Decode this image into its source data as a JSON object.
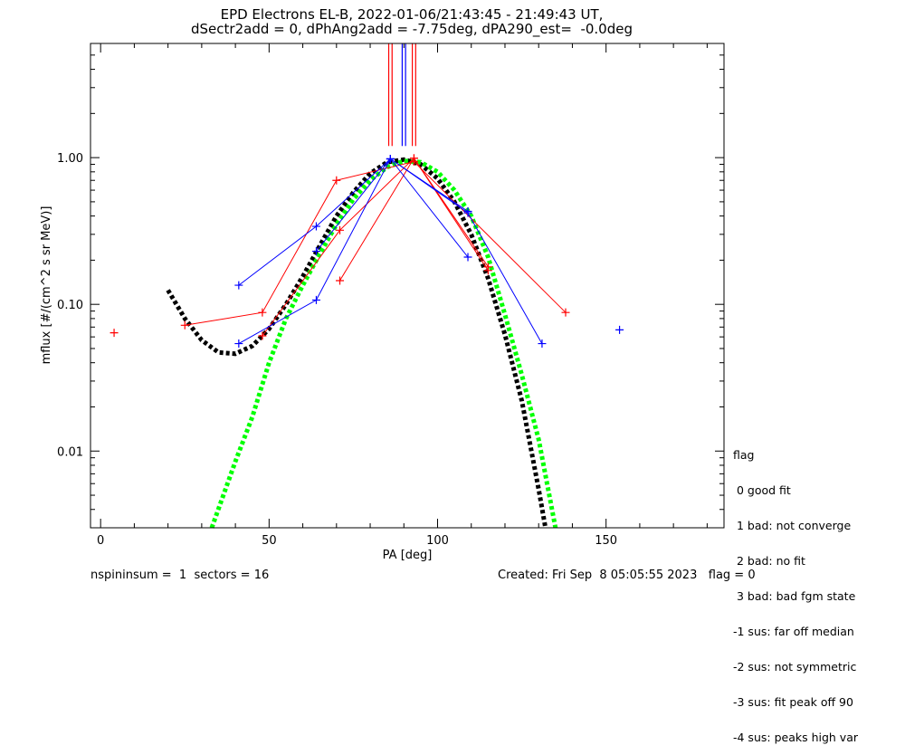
{
  "title_line1": "EPD Electrons EL-B, 2022-01-06/21:43:45 - 21:49:43 UT,",
  "title_line2": "dSectr2add = 0, dPhAng2add = -7.75deg, dPA290_est=  -0.0deg",
  "footer_left": "nspininsum =  1  sectors = 16",
  "footer_right": "Created: Fri Sep  8 05:05:55 2023   flag = 0",
  "legend": {
    "title": "flag",
    "items": [
      " 0 good fit",
      " 1 bad: not converge",
      " 2 bad: no fit",
      " 3 bad: bad fgm state",
      "-1 sus: far off median",
      "-2 sus: not symmetric",
      "-3 sus: fit peak off 90",
      "-4 sus: peaks high var"
    ]
  },
  "colors": {
    "red": "#ff0000",
    "blue": "#0000ff",
    "black": "#000000",
    "green": "#00ff00"
  },
  "chart_data": {
    "type": "line",
    "xlabel": "PA [deg]",
    "ylabel": "mflux [#/(cm^2 s sr MeV)]",
    "xlim": [
      -3,
      185
    ],
    "ylim": [
      0.003,
      6
    ],
    "yscale": "log",
    "xticks": [
      0,
      50,
      100,
      150
    ],
    "yticks": [
      0.01,
      0.1,
      1.0
    ],
    "ytick_labels": [
      "0.01",
      "0.10",
      "1.00"
    ],
    "series": [
      {
        "color": "red",
        "points": [
          [
            25,
            0.072
          ],
          [
            48,
            0.088
          ],
          [
            70,
            0.7
          ],
          [
            93,
            0.94
          ],
          [
            138,
            0.088
          ]
        ]
      },
      {
        "color": "red",
        "points": [
          [
            48,
            0.061
          ],
          [
            71,
            0.32
          ],
          [
            93,
            0.99
          ],
          [
            115,
            0.17
          ]
        ]
      },
      {
        "color": "red",
        "points": [
          [
            71,
            0.145
          ],
          [
            93,
            0.99
          ],
          [
            115,
            0.18
          ]
        ]
      },
      {
        "color": "blue",
        "points": [
          [
            41,
            0.135
          ],
          [
            64,
            0.34
          ],
          [
            86,
            0.98
          ],
          [
            109,
            0.42
          ],
          [
            131,
            0.054
          ]
        ]
      },
      {
        "color": "blue",
        "points": [
          [
            41,
            0.054
          ],
          [
            64,
            0.107
          ],
          [
            86,
            0.98
          ],
          [
            109,
            0.21
          ]
        ]
      },
      {
        "color": "blue",
        "points": [
          [
            64,
            0.23
          ],
          [
            86,
            0.98
          ],
          [
            109,
            0.43
          ]
        ]
      }
    ],
    "isolated_points": [
      {
        "color": "red",
        "x": 4,
        "y": 0.064
      },
      {
        "color": "blue",
        "x": 154,
        "y": 0.067
      }
    ],
    "fit_curves": [
      {
        "color": "black",
        "points": [
          [
            20,
            0.125
          ],
          [
            25,
            0.08
          ],
          [
            30,
            0.057
          ],
          [
            35,
            0.047
          ],
          [
            40,
            0.046
          ],
          [
            45,
            0.052
          ],
          [
            50,
            0.068
          ],
          [
            55,
            0.1
          ],
          [
            60,
            0.155
          ],
          [
            65,
            0.25
          ],
          [
            70,
            0.4
          ],
          [
            75,
            0.58
          ],
          [
            80,
            0.78
          ],
          [
            85,
            0.93
          ],
          [
            90,
            0.97
          ],
          [
            95,
            0.9
          ],
          [
            100,
            0.72
          ],
          [
            105,
            0.5
          ],
          [
            110,
            0.3
          ],
          [
            115,
            0.15
          ],
          [
            120,
            0.062
          ],
          [
            125,
            0.022
          ],
          [
            130,
            0.0055
          ],
          [
            132,
            0.003
          ]
        ]
      },
      {
        "color": "green",
        "points": [
          [
            33,
            0.003
          ],
          [
            40,
            0.0085
          ],
          [
            45,
            0.017
          ],
          [
            50,
            0.04
          ],
          [
            55,
            0.08
          ],
          [
            60,
            0.135
          ],
          [
            65,
            0.22
          ],
          [
            70,
            0.35
          ],
          [
            75,
            0.52
          ],
          [
            80,
            0.7
          ],
          [
            85,
            0.86
          ],
          [
            90,
            0.95
          ],
          [
            95,
            0.93
          ],
          [
            100,
            0.8
          ],
          [
            105,
            0.6
          ],
          [
            110,
            0.4
          ],
          [
            115,
            0.21
          ],
          [
            120,
            0.085
          ],
          [
            125,
            0.033
          ],
          [
            130,
            0.012
          ],
          [
            135,
            0.003
          ]
        ]
      }
    ],
    "vertical_markers": [
      {
        "color": "red",
        "x": 85.5,
        "y_from": 1.2
      },
      {
        "color": "red",
        "x": 86.5,
        "y_from": 1.2
      },
      {
        "color": "red",
        "x": 92.5,
        "y_from": 1.2
      },
      {
        "color": "red",
        "x": 93.5,
        "y_from": 1.2
      },
      {
        "color": "blue",
        "x": 89.5,
        "y_from": 1.2
      },
      {
        "color": "blue",
        "x": 90.5,
        "y_from": 1.2
      }
    ]
  }
}
